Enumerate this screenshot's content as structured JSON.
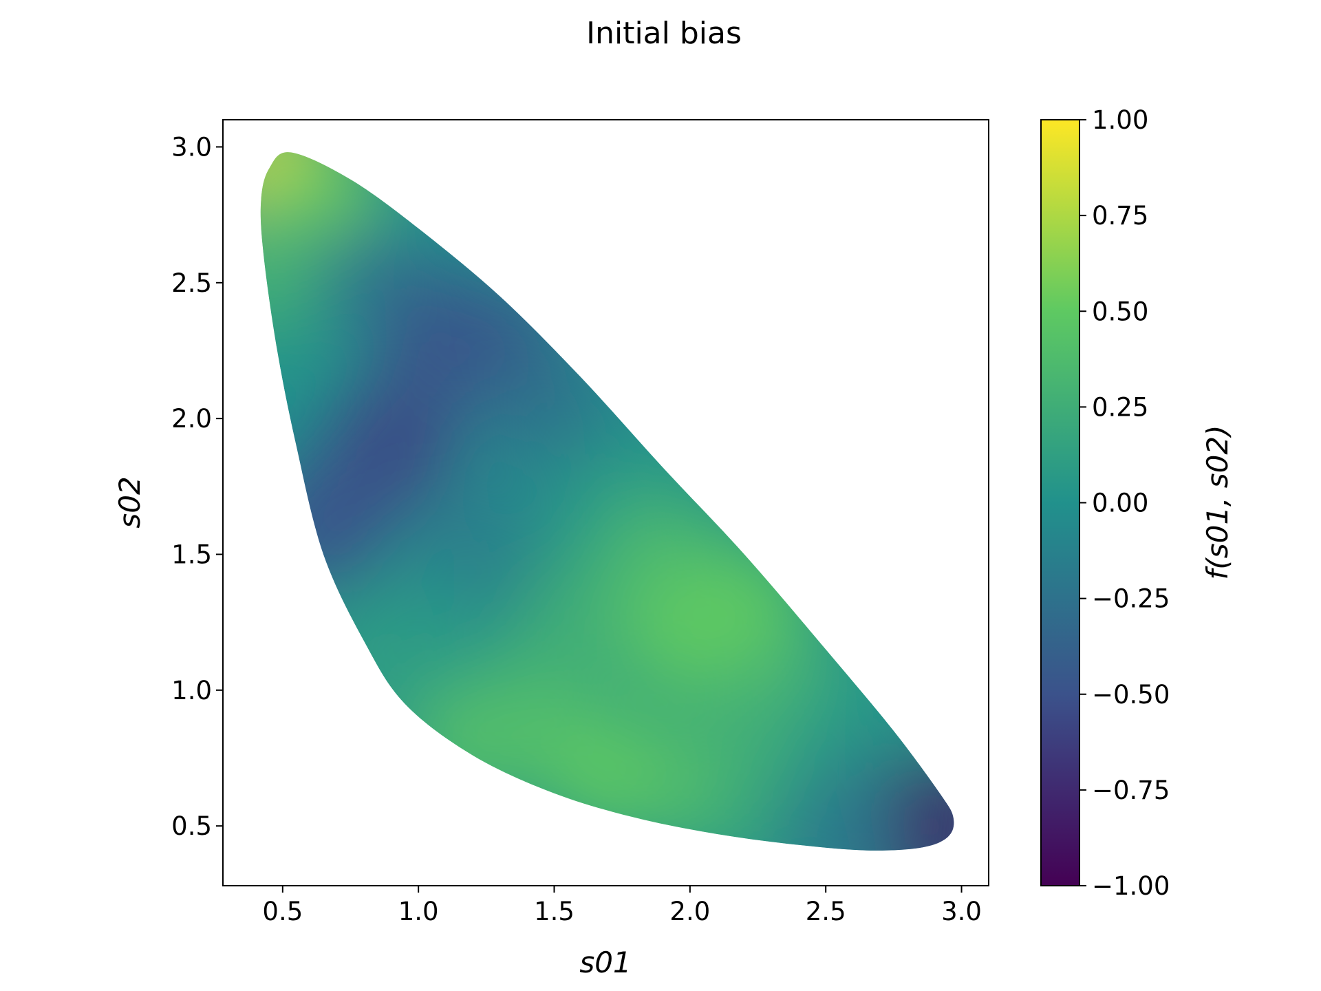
{
  "chart_data": {
    "type": "scatter",
    "title": "Initial bias",
    "xlabel": "s01",
    "ylabel": "s02",
    "colorbar_label": "f(s01, s02)",
    "xlim": [
      0.28,
      3.1
    ],
    "ylim": [
      0.28,
      3.1
    ],
    "xticks": [
      "0.5",
      "1.0",
      "1.5",
      "2.0",
      "2.5",
      "3.0"
    ],
    "yticks": [
      "0.5",
      "1.0",
      "1.5",
      "2.0",
      "2.5",
      "3.0"
    ],
    "colorbar_range": [
      -1.0,
      1.0
    ],
    "colorbar_ticks": [
      "1.00",
      "0.75",
      "0.50",
      "0.25",
      "0.00",
      "−0.25",
      "−0.50",
      "−0.75",
      "−1.00"
    ],
    "colormap": "viridis",
    "colormap_stops": [
      "#440154",
      "#3b528b",
      "#21918c",
      "#5ec962",
      "#fde725"
    ],
    "grid": false,
    "region_boundary": {
      "s01": [
        0.53,
        0.75,
        1.0,
        1.3,
        1.6,
        1.9,
        2.2,
        2.5,
        2.75,
        2.92,
        2.97,
        2.95,
        2.85,
        2.65,
        2.4,
        2.1,
        1.8,
        1.5,
        1.2,
        0.95,
        0.8,
        0.65,
        0.55,
        0.48,
        0.43,
        0.42,
        0.45
      ],
      "s02": [
        2.98,
        2.88,
        2.7,
        2.45,
        2.15,
        1.82,
        1.5,
        1.15,
        0.85,
        0.62,
        0.53,
        0.46,
        0.42,
        0.41,
        0.43,
        0.47,
        0.53,
        0.62,
        0.76,
        0.95,
        1.18,
        1.5,
        1.9,
        2.25,
        2.6,
        2.8,
        2.92
      ]
    },
    "color_samples": [
      {
        "s01": 0.5,
        "s02": 2.9,
        "f": 0.95
      },
      {
        "s01": 0.62,
        "s02": 2.8,
        "f": 0.55
      },
      {
        "s01": 0.45,
        "s02": 2.55,
        "f": 0.3
      },
      {
        "s01": 0.85,
        "s02": 2.5,
        "f": -0.2
      },
      {
        "s01": 1.1,
        "s02": 2.3,
        "f": -0.5
      },
      {
        "s01": 0.9,
        "s02": 1.9,
        "f": -0.55
      },
      {
        "s01": 0.65,
        "s02": 1.6,
        "f": -0.5
      },
      {
        "s01": 1.3,
        "s02": 2.25,
        "f": -0.45
      },
      {
        "s01": 1.5,
        "s02": 2.0,
        "f": -0.25
      },
      {
        "s01": 1.2,
        "s02": 1.5,
        "f": -0.15
      },
      {
        "s01": 1.0,
        "s02": 1.2,
        "f": 0.05
      },
      {
        "s01": 0.8,
        "s02": 1.1,
        "f": 0.1
      },
      {
        "s01": 1.7,
        "s02": 1.7,
        "f": 0.05
      },
      {
        "s01": 1.6,
        "s02": 1.25,
        "f": 0.25
      },
      {
        "s01": 1.4,
        "s02": 0.9,
        "f": 0.35
      },
      {
        "s01": 1.2,
        "s02": 0.8,
        "f": 0.4
      },
      {
        "s01": 1.9,
        "s02": 1.5,
        "f": 0.35
      },
      {
        "s01": 2.0,
        "s02": 1.2,
        "f": 0.5
      },
      {
        "s01": 2.2,
        "s02": 1.3,
        "f": 0.5
      },
      {
        "s01": 1.7,
        "s02": 0.7,
        "f": 0.5
      },
      {
        "s01": 2.0,
        "s02": 0.65,
        "f": 0.4
      },
      {
        "s01": 2.3,
        "s02": 0.55,
        "f": 0.2
      },
      {
        "s01": 2.4,
        "s02": 0.95,
        "f": 0.3
      },
      {
        "s01": 2.6,
        "s02": 0.8,
        "f": 0.05
      },
      {
        "s01": 2.75,
        "s02": 0.5,
        "f": -0.35
      },
      {
        "s01": 2.9,
        "s02": 0.5,
        "f": -0.9
      },
      {
        "s01": 2.85,
        "s02": 0.45,
        "f": -0.8
      },
      {
        "s01": 2.55,
        "s02": 0.45,
        "f": -0.2
      }
    ]
  }
}
